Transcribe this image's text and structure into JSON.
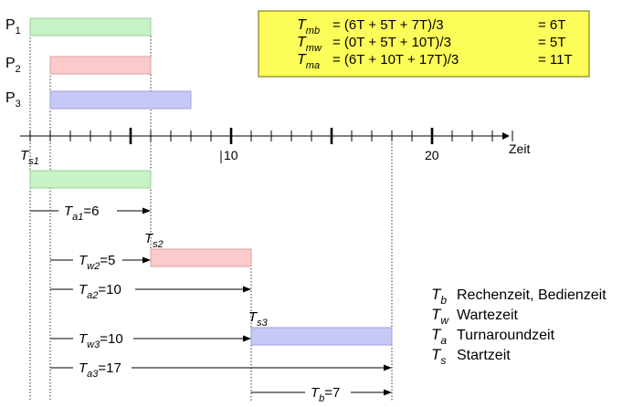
{
  "colors": {
    "green": "#c6f2c6",
    "green_stroke": "#9ccf9c",
    "red": "#fbcaca",
    "red_stroke": "#d8a0a0",
    "blue": "#c6c8f5",
    "blue_stroke": "#9ea2d8",
    "box_fill": "#fdfd5a",
    "box_stroke": "#6b6b00"
  },
  "processes": [
    {
      "label": "P",
      "sub": "1",
      "start": 0,
      "end": 6,
      "color": "green"
    },
    {
      "label": "P",
      "sub": "2",
      "start": 1,
      "end": 6,
      "color": "red"
    },
    {
      "label": "P",
      "sub": "3",
      "start": 1,
      "end": 8,
      "color": "blue"
    }
  ],
  "axis": {
    "label": "Zeit",
    "min": 0,
    "max": 24,
    "tick_labels": [
      "10",
      "20"
    ],
    "tick_values": [
      10,
      20
    ],
    "major_ticks": [
      5,
      10,
      15,
      20
    ]
  },
  "formulas": [
    {
      "main": "T",
      "sub": "mb",
      "expr": "=  (6T + 5T + 7T)/3",
      "result": "=   6T"
    },
    {
      "main": "T",
      "sub": "mw",
      "expr": "=  (0T + 5T + 10T)/3",
      "result": "=   5T"
    },
    {
      "main": "T",
      "sub": "ma",
      "expr": "=  (6T + 10T + 17T)/3",
      "result": "= 11T"
    }
  ],
  "timeline": {
    "ts1": {
      "main": "T",
      "sub": "s1"
    },
    "ts2": {
      "main": "T",
      "sub": "s2"
    },
    "ts3": {
      "main": "T",
      "sub": "s3"
    },
    "exec_bars": [
      {
        "start": 0,
        "end": 6,
        "color": "green"
      },
      {
        "start": 6,
        "end": 11,
        "color": "red"
      },
      {
        "start": 11,
        "end": 18,
        "color": "blue"
      }
    ],
    "arrows": [
      {
        "main": "T",
        "sub": "a1",
        "value": "=6",
        "from": 0,
        "to": 6
      },
      {
        "main": "T",
        "sub": "w2",
        "value": "=5",
        "from": 1,
        "to": 6
      },
      {
        "main": "T",
        "sub": "a2",
        "value": "=10",
        "from": 1,
        "to": 11
      },
      {
        "main": "T",
        "sub": "w3",
        "value": "=10",
        "from": 1,
        "to": 11
      },
      {
        "main": "T",
        "sub": "a3",
        "value": "=17",
        "from": 1,
        "to": 18
      },
      {
        "main": "T",
        "sub": "b",
        "value": "=7",
        "from": 11,
        "to": 18
      }
    ]
  },
  "legend": [
    {
      "main": "T",
      "sub": "b",
      "text": "Rechenzeit, Bedienzeit"
    },
    {
      "main": "T",
      "sub": "w",
      "text": "Wartezeit"
    },
    {
      "main": "T",
      "sub": "a",
      "text": "Turnaroundzeit"
    },
    {
      "main": "T",
      "sub": "s",
      "text": "Startzeit"
    }
  ]
}
